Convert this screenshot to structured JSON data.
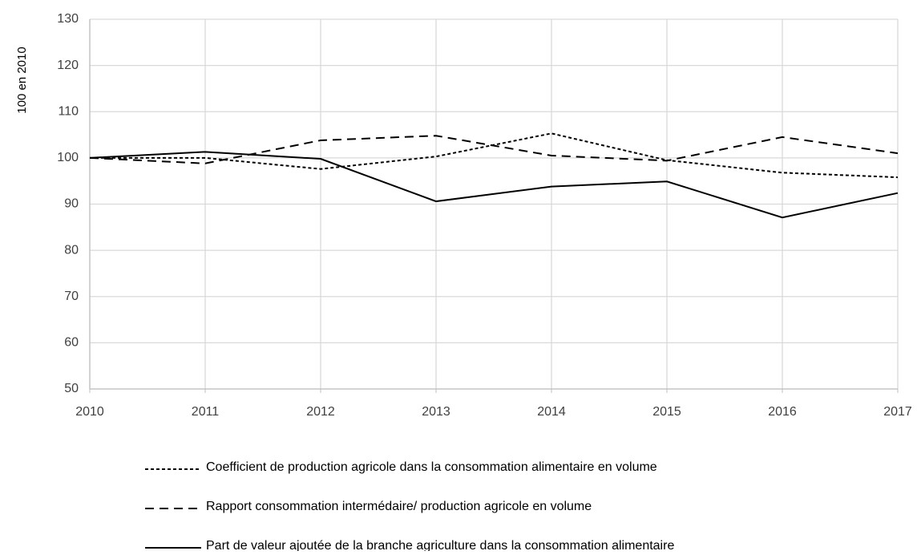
{
  "chart_data": {
    "type": "line",
    "y_label": "100 en 2010",
    "x": [
      2010,
      2011,
      2012,
      2013,
      2014,
      2015,
      2016,
      2017
    ],
    "xlim": [
      2010,
      2017
    ],
    "xticks": [
      2010,
      2011,
      2012,
      2013,
      2014,
      2015,
      2016,
      2017
    ],
    "ylim": [
      50,
      130
    ],
    "yticks": [
      50,
      60,
      70,
      80,
      90,
      100,
      110,
      120,
      130
    ],
    "grid": true,
    "legend": "bottom",
    "series": [
      {
        "name": "Coefficient de production agricole dans la consommation alimentaire en volume",
        "color": "#000000",
        "line_style": "dotted",
        "values": [
          100,
          100,
          97.6,
          100.3,
          105.3,
          99.5,
          96.8,
          95.8
        ]
      },
      {
        "name": "Rapport consommation intermédaire/ production agricole en volume",
        "color": "#000000",
        "line_style": "dashed",
        "values": [
          100,
          98.8,
          103.8,
          104.8,
          100.5,
          99.4,
          104.5,
          101
        ]
      },
      {
        "name": "Part de valeur ajoutée de la branche agriculture dans la consommation alimentaire",
        "color": "#000000",
        "line_style": "solid",
        "values": [
          100,
          101.3,
          99.8,
          90.6,
          93.8,
          94.9,
          87.1,
          92.4
        ]
      }
    ]
  }
}
